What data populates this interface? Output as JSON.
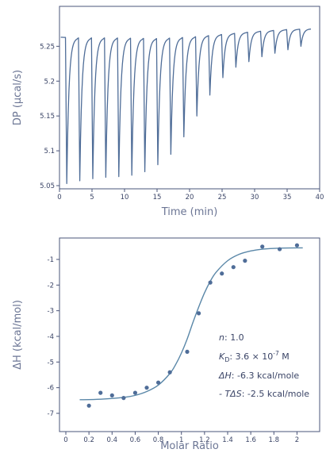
{
  "colors": {
    "axis": "#4a5478",
    "trace": "#4f6d98",
    "point": "#4f6d98",
    "fit": "#5a87a8",
    "text": "#3a4466",
    "label": "#6b7594"
  },
  "chart_data": [
    {
      "type": "line",
      "xlabel": "Time (min)",
      "ylabel": "DP (μcal/s)",
      "xlim": [
        0,
        40
      ],
      "ylim": [
        5.05,
        5.28
      ],
      "xticks": [
        0,
        5,
        10,
        15,
        20,
        25,
        30,
        35,
        40
      ],
      "xtick_labels": [
        "0",
        "5",
        "10",
        "15",
        "20",
        "25",
        "30",
        "35",
        "40"
      ],
      "yticks": [
        5.05,
        5.1,
        5.15,
        5.2,
        5.25
      ],
      "ytick_labels": [
        "5.05",
        "5.1",
        "5.15",
        "5.2",
        "5.25"
      ],
      "baseline": [
        [
          0.2,
          5.263
        ],
        [
          3,
          5.262
        ],
        [
          8,
          5.262
        ],
        [
          15,
          5.261
        ],
        [
          20,
          5.263
        ],
        [
          25,
          5.267
        ],
        [
          30,
          5.271
        ],
        [
          35,
          5.274
        ],
        [
          38.5,
          5.275
        ]
      ],
      "injections": [
        {
          "time": 1.0,
          "min_dp": 5.053
        },
        {
          "time": 3.0,
          "min_dp": 5.057
        },
        {
          "time": 5.0,
          "min_dp": 5.06
        },
        {
          "time": 7.0,
          "min_dp": 5.062
        },
        {
          "time": 9.0,
          "min_dp": 5.063
        },
        {
          "time": 11.0,
          "min_dp": 5.065
        },
        {
          "time": 13.0,
          "min_dp": 5.07
        },
        {
          "time": 15.0,
          "min_dp": 5.08
        },
        {
          "time": 17.0,
          "min_dp": 5.095
        },
        {
          "time": 19.0,
          "min_dp": 5.12
        },
        {
          "time": 21.0,
          "min_dp": 5.15
        },
        {
          "time": 23.0,
          "min_dp": 5.18
        },
        {
          "time": 25.0,
          "min_dp": 5.205
        },
        {
          "time": 27.0,
          "min_dp": 5.22
        },
        {
          "time": 29.0,
          "min_dp": 5.228
        },
        {
          "time": 31.0,
          "min_dp": 5.235
        },
        {
          "time": 33.0,
          "min_dp": 5.24
        },
        {
          "time": 35.0,
          "min_dp": 5.245
        },
        {
          "time": 37.0,
          "min_dp": 5.25
        }
      ]
    },
    {
      "type": "scatter",
      "xlabel": "Molar Ratio",
      "ylabel": "ΔH (kcal/mol)",
      "xlim": [
        0,
        2.1
      ],
      "ylim": [
        -7,
        -0.3
      ],
      "xticks": [
        0,
        0.2,
        0.4,
        0.6,
        0.8,
        1,
        1.2,
        1.4,
        1.6,
        1.8,
        2
      ],
      "xtick_labels": [
        "0",
        "0.2",
        "0.4",
        "0.6",
        "0.8",
        "1",
        "1.2",
        "1.4",
        "1.6",
        "1.8",
        "2"
      ],
      "yticks": [
        -7,
        -6,
        -5,
        -4,
        -3,
        -2,
        -1
      ],
      "ytick_labels": [
        "-7",
        "-6",
        "-5",
        "-4",
        "-3",
        "-2",
        "-1"
      ],
      "points": [
        [
          0.2,
          -6.7
        ],
        [
          0.3,
          -6.2
        ],
        [
          0.4,
          -6.3
        ],
        [
          0.5,
          -6.4
        ],
        [
          0.6,
          -6.2
        ],
        [
          0.7,
          -6.0
        ],
        [
          0.8,
          -5.8
        ],
        [
          0.9,
          -5.4
        ],
        [
          1.05,
          -4.6
        ],
        [
          1.15,
          -3.1
        ],
        [
          1.25,
          -1.9
        ],
        [
          1.35,
          -1.55
        ],
        [
          1.45,
          -1.3
        ],
        [
          1.55,
          -1.05
        ],
        [
          1.7,
          -0.5
        ],
        [
          1.85,
          -0.6
        ],
        [
          2.0,
          -0.45
        ]
      ],
      "fit": [
        [
          0.12,
          -6.47
        ],
        [
          0.3,
          -6.45
        ],
        [
          0.5,
          -6.38
        ],
        [
          0.6,
          -6.3
        ],
        [
          0.7,
          -6.15
        ],
        [
          0.8,
          -5.9
        ],
        [
          0.9,
          -5.45
        ],
        [
          0.95,
          -5.1
        ],
        [
          1.0,
          -4.65
        ],
        [
          1.05,
          -4.1
        ],
        [
          1.1,
          -3.45
        ],
        [
          1.15,
          -2.85
        ],
        [
          1.2,
          -2.3
        ],
        [
          1.25,
          -1.85
        ],
        [
          1.3,
          -1.5
        ],
        [
          1.4,
          -1.05
        ],
        [
          1.5,
          -0.8
        ],
        [
          1.6,
          -0.67
        ],
        [
          1.7,
          -0.6
        ],
        [
          1.85,
          -0.56
        ],
        [
          2.05,
          -0.55
        ]
      ],
      "annotations": [
        {
          "label": "n",
          "label_sub": "",
          "sep": ": ",
          "value": "1.0"
        },
        {
          "label": "K",
          "label_sub": "D",
          "sep": ": ",
          "value": "3.6 × 10",
          "value_sup": "-7",
          "value_tail": " M"
        },
        {
          "label": "ΔH",
          "label_sub": "",
          "sep": ": ",
          "value": "-6.3 kcal/mole"
        },
        {
          "label": "- TΔS",
          "label_sub": "",
          "sep": ": ",
          "value": "-2.5 kcal/mole"
        }
      ]
    }
  ]
}
